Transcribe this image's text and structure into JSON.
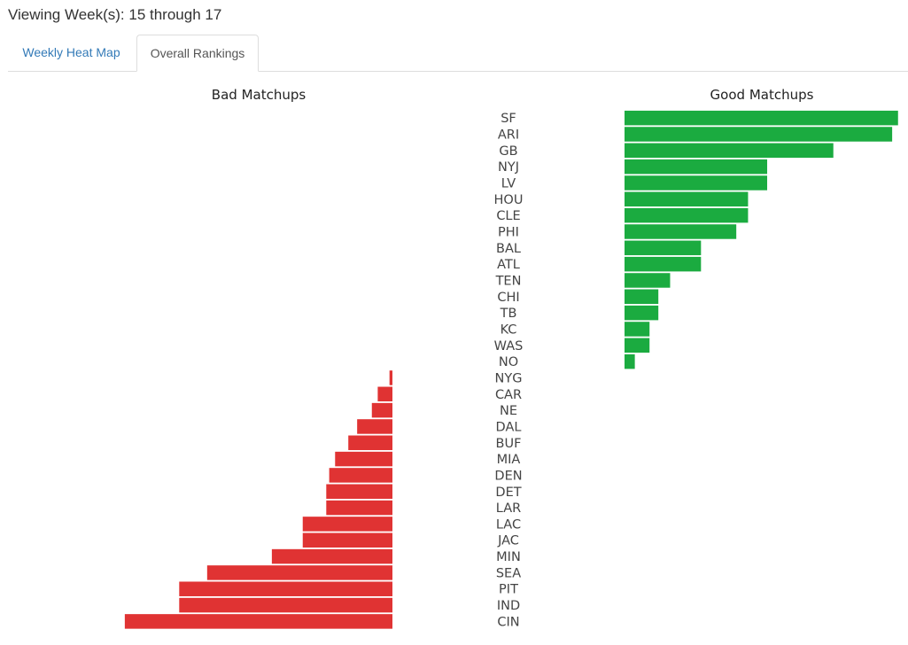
{
  "header": {
    "viewing_text": "Viewing Week(s): 15 through 17"
  },
  "tabs": [
    {
      "label": "Weekly Heat Map",
      "active": false
    },
    {
      "label": "Overall Rankings",
      "active": true
    }
  ],
  "colors": {
    "good": "#1bab40",
    "bad": "#e03333",
    "link": "#337ab7"
  },
  "chart_data": {
    "type": "bar",
    "orientation": "horizontal",
    "panels": [
      {
        "name": "Bad Matchups",
        "direction": "left",
        "color": "#e03333"
      },
      {
        "name": "Good Matchups",
        "direction": "right",
        "color": "#1bab40"
      }
    ],
    "categories": [
      "SF",
      "ARI",
      "GB",
      "NYJ",
      "LV",
      "HOU",
      "CLE",
      "PHI",
      "BAL",
      "ATL",
      "TEN",
      "CHI",
      "TB",
      "KC",
      "WAS",
      "NO",
      "NYG",
      "CAR",
      "NE",
      "DAL",
      "BUF",
      "MIA",
      "DEN",
      "DET",
      "LAR",
      "LAC",
      "JAC",
      "MIN",
      "SEA",
      "PIT",
      "IND",
      "CIN"
    ],
    "series": [
      {
        "name": "Good Matchups",
        "values": [
          93,
          91,
          71,
          48.5,
          48.5,
          42,
          42,
          38,
          26,
          26,
          15.5,
          11.5,
          11.5,
          8.5,
          8.5,
          3.5,
          0,
          0,
          0,
          0,
          0,
          0,
          0,
          0,
          0,
          0,
          0,
          0,
          0,
          0,
          0,
          0
        ]
      },
      {
        "name": "Bad Matchups",
        "values": [
          0,
          0,
          0,
          0,
          0,
          0,
          0,
          0,
          0,
          0,
          0,
          0,
          0,
          0,
          0,
          0,
          1,
          5,
          7,
          12,
          15,
          19.5,
          21.5,
          22.5,
          22.5,
          30.5,
          30.5,
          41,
          63,
          72.5,
          72.5,
          91
        ]
      }
    ],
    "xlim": [
      0,
      100
    ]
  }
}
